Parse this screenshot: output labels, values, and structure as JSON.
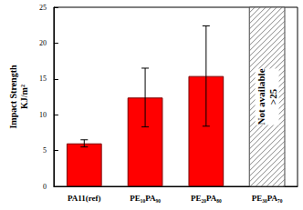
{
  "chart_data": {
    "type": "bar",
    "ylabel": "Impact Strength\nKJ/m²",
    "categories": [
      "PA11(ref)",
      "PE₁₀PA₉₀",
      "PE₂₀PA₈₀",
      "PE₃₀PA₇₀"
    ],
    "values": [
      6.0,
      12.4,
      15.4,
      null
    ],
    "errors": [
      0.5,
      4.1,
      7.0,
      null
    ],
    "color": "#ff0000",
    "ylim": [
      0,
      25
    ],
    "yticks": [
      0,
      5,
      10,
      15,
      20,
      25
    ],
    "grid": false,
    "annotations": [
      {
        "category": "PE₃₀PA₇₀",
        "text": [
          "Not available",
          ">25"
        ]
      }
    ]
  }
}
